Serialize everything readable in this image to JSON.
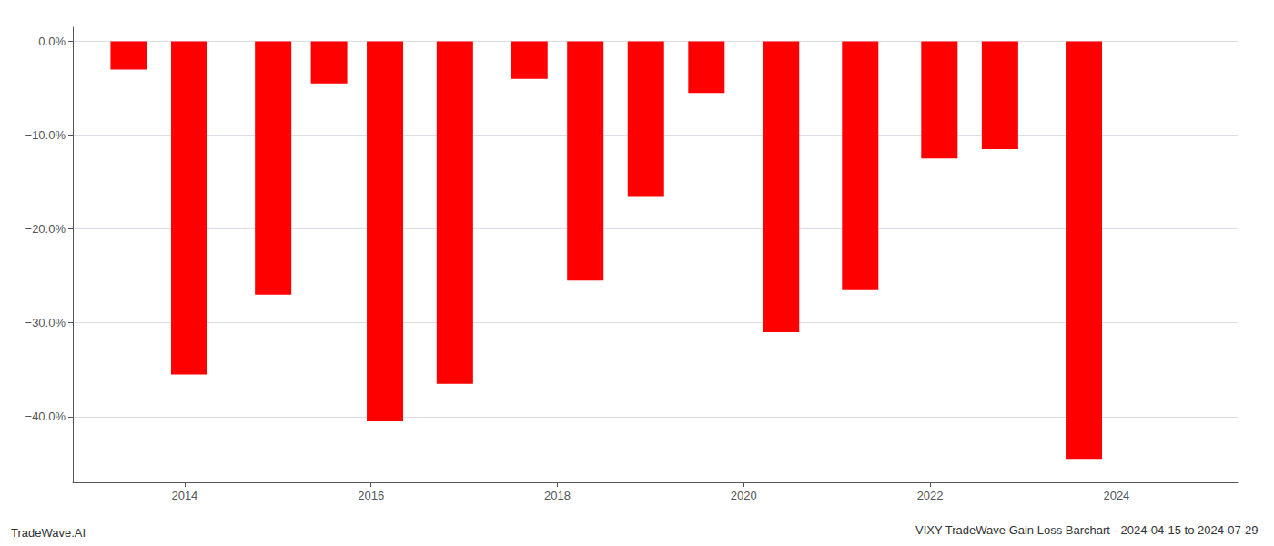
{
  "chart_data": {
    "type": "bar",
    "title": "VIXY TradeWave Gain Loss Barchart - 2024-04-15 to 2024-07-29",
    "annotations": [
      "TradeWave.AI"
    ],
    "x": [
      2013.4,
      2014.05,
      2014.95,
      2015.55,
      2016.15,
      2016.9,
      2017.7,
      2018.3,
      2018.95,
      2019.6,
      2020.4,
      2021.25,
      2022.1,
      2022.75,
      2023.65
    ],
    "values": [
      -3.0,
      -35.5,
      -27.0,
      -4.5,
      -40.5,
      -36.5,
      -4.0,
      -25.5,
      -16.5,
      -5.5,
      -31.0,
      -26.5,
      -12.5,
      -11.5,
      -44.5
    ],
    "color": "#ff0000",
    "xlim": [
      2012.8,
      2025.3
    ],
    "xticks": [
      2014,
      2016,
      2018,
      2020,
      2022,
      2024
    ],
    "ylim": [
      -47,
      1.5
    ],
    "yticks": [
      {
        "value": 0,
        "label": "0.0%"
      },
      {
        "value": -10,
        "label": "−10.0%"
      },
      {
        "value": -20,
        "label": "−20.0%"
      },
      {
        "value": -30,
        "label": "−30.0%"
      },
      {
        "value": -40,
        "label": "−40.0%"
      }
    ],
    "grid": true
  }
}
